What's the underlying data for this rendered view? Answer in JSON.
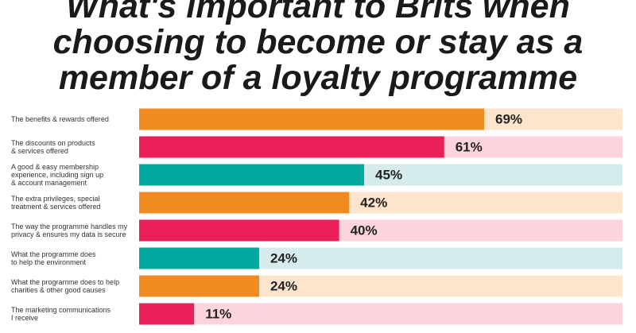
{
  "chart_data": {
    "type": "bar",
    "orientation": "horizontal",
    "title": "What's important to Brits when\nchoosing to become or stay as a\nmember of a loyalty programme",
    "categories": [
      "The benefits & rewards offered",
      "The discounts on products\n& services offered",
      "A good & easy membership\nexperience, including sign up\n& account management",
      "The extra privileges, special\ntreatment & services offered",
      "The way the programme handles my\nprivacy & ensures my data is secure",
      "What the programme does\nto help the environment",
      "What the programme does to help\ncharities & other good causes",
      "The marketing communications\nI receive"
    ],
    "values": [
      69,
      61,
      45,
      42,
      40,
      24,
      24,
      11
    ],
    "value_labels": [
      "69%",
      "61%",
      "45%",
      "42%",
      "40%",
      "24%",
      "24%",
      "11%"
    ],
    "colors": [
      "#f28a22",
      "#e91f59",
      "#00a89e",
      "#f28a22",
      "#e91f59",
      "#00a89e",
      "#f28a22",
      "#e91f59"
    ],
    "xlim": [
      0,
      100
    ]
  }
}
